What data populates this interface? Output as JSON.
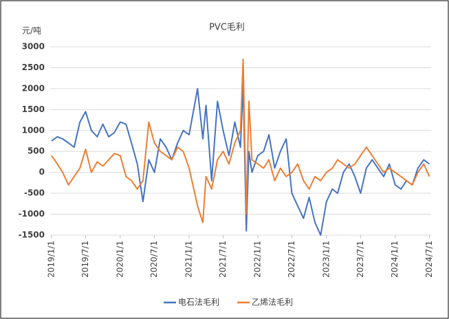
{
  "chart_data": {
    "type": "line",
    "title": "PVC毛利",
    "y_label": "元/吨",
    "x": [
      "2019/1/1",
      "2019/2/1",
      "2019/3/1",
      "2019/4/1",
      "2019/5/1",
      "2019/6/1",
      "2019/7/1",
      "2019/8/1",
      "2019/9/1",
      "2019/10/1",
      "2019/11/1",
      "2019/12/1",
      "2020/1/1",
      "2020/2/1",
      "2020/3/1",
      "2020/4/1",
      "2020/5/1",
      "2020/6/1",
      "2020/7/1",
      "2020/8/1",
      "2020/9/1",
      "2020/10/1",
      "2020/11/1",
      "2020/12/1",
      "2021/1/1",
      "2021/2/15",
      "2021/3/15",
      "2021/4/1",
      "2021/5/1",
      "2021/6/1",
      "2021/7/1",
      "2021/8/1",
      "2021/9/1",
      "2021/10/1",
      "2021/10/15",
      "2021/11/1",
      "2021/11/15",
      "2021/12/1",
      "2022/1/1",
      "2022/2/1",
      "2022/3/1",
      "2022/4/1",
      "2022/5/1",
      "2022/6/1",
      "2022/7/1",
      "2022/8/1",
      "2022/9/1",
      "2022/10/1",
      "2022/11/1",
      "2022/12/1",
      "2023/1/1",
      "2023/2/1",
      "2023/3/1",
      "2023/4/1",
      "2023/5/1",
      "2023/6/1",
      "2023/7/1",
      "2023/8/1",
      "2023/9/1",
      "2023/10/1",
      "2023/11/1",
      "2023/12/1",
      "2024/1/1",
      "2024/2/1",
      "2024/3/1",
      "2024/4/1",
      "2024/5/1",
      "2024/6/1",
      "2024/7/1"
    ],
    "series": [
      {
        "name": "电石法毛利",
        "color": "#4472c4",
        "values": [
          750,
          850,
          800,
          700,
          600,
          1200,
          1450,
          1000,
          850,
          1150,
          850,
          950,
          1200,
          1150,
          700,
          200,
          -700,
          300,
          0,
          800,
          600,
          300,
          700,
          1000,
          900,
          2000,
          800,
          1600,
          -200,
          1700,
          1000,
          400,
          1200,
          600,
          2100,
          -1400,
          500,
          0,
          400,
          500,
          900,
          100,
          500,
          800,
          -500,
          -800,
          -1100,
          -600,
          -1200,
          -1500,
          -700,
          -400,
          -500,
          0,
          200,
          -100,
          -500,
          100,
          300,
          100,
          -100,
          200,
          -300,
          -400,
          -200,
          -300,
          100,
          300,
          200
        ]
      },
      {
        "name": "乙烯法毛利",
        "color": "#ed7d31",
        "values": [
          400,
          200,
          0,
          -300,
          -100,
          100,
          550,
          0,
          250,
          150,
          300,
          450,
          400,
          -100,
          -200,
          -400,
          -200,
          1200,
          700,
          500,
          400,
          300,
          600,
          500,
          100,
          -800,
          -1200,
          -100,
          -400,
          300,
          500,
          200,
          700,
          1000,
          2700,
          -1000,
          1700,
          300,
          200,
          100,
          300,
          -200,
          100,
          -100,
          0,
          200,
          -200,
          -400,
          -100,
          -200,
          0,
          100,
          300,
          200,
          100,
          200,
          400,
          600,
          400,
          200,
          0,
          100,
          0,
          -100,
          -200,
          -300,
          0,
          200,
          -100
        ]
      }
    ],
    "xlim": [
      "2018/12/25",
      "2024/7/10"
    ],
    "xticks": [
      "2019/1/1",
      "2019/7/1",
      "2020/1/1",
      "2020/7/1",
      "2021/1/1",
      "2021/7/1",
      "2022/1/1",
      "2022/7/1",
      "2023/1/1",
      "2023/7/1",
      "2024/1/1",
      "2024/7/1"
    ],
    "ylim": [
      -1500,
      3000
    ],
    "yticks": [
      -1500,
      -1000,
      -500,
      0,
      500,
      1000,
      1500,
      2000,
      2500,
      3000
    ],
    "grid": true,
    "legend": "bottom"
  }
}
